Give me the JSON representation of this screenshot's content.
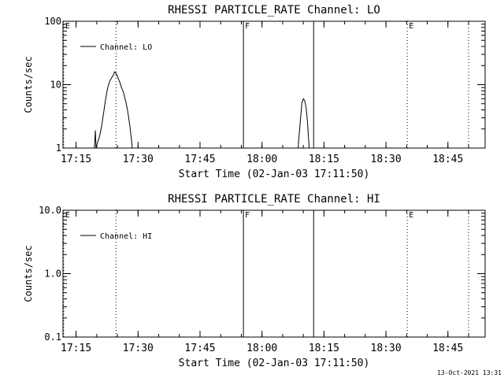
{
  "chart_data": [
    {
      "type": "line",
      "title": "RHESSI PARTICLE_RATE Channel: LO",
      "xlabel": "Start Time (02-Jan-03 17:11:50)",
      "ylabel": "Counts/sec",
      "y_scale": "log",
      "ylim": [
        1,
        100
      ],
      "y_ticks": [
        "1",
        "10",
        "100"
      ],
      "xlim": [
        "17:11:50",
        "18:54:00"
      ],
      "x_ticks": [
        "17:15",
        "17:30",
        "17:45",
        "18:00",
        "18:15",
        "18:30",
        "18:45"
      ],
      "grid": false,
      "legend": "top-left",
      "series": [
        {
          "name": "Channel: LO",
          "points": [
            [
              "17:19:00",
              0.5
            ],
            [
              "17:19:30",
              1.1
            ],
            [
              "17:19:40",
              1.9
            ],
            [
              "17:19:50",
              1.0
            ],
            [
              "17:20:10",
              1.2
            ],
            [
              "17:20:40",
              1.5
            ],
            [
              "17:21:10",
              2.2
            ],
            [
              "17:21:40",
              3.6
            ],
            [
              "17:22:10",
              6.0
            ],
            [
              "17:22:40",
              9.0
            ],
            [
              "17:23:10",
              11.5
            ],
            [
              "17:23:40",
              13.0
            ],
            [
              "17:24:00",
              14.0
            ],
            [
              "17:24:20",
              16.0
            ],
            [
              "17:24:40",
              15.0
            ],
            [
              "17:25:00",
              13.5
            ],
            [
              "17:25:20",
              12.0
            ],
            [
              "17:25:40",
              10.5
            ],
            [
              "17:26:00",
              9.0
            ],
            [
              "17:26:30",
              7.5
            ],
            [
              "17:27:00",
              5.5
            ],
            [
              "17:27:30",
              3.8
            ],
            [
              "17:28:00",
              2.3
            ],
            [
              "17:28:30",
              1.2
            ],
            [
              "17:29:00",
              0.5
            ],
            [
              "18:08:30",
              0.5
            ],
            [
              "18:08:50",
              1.2
            ],
            [
              "18:09:20",
              3.0
            ],
            [
              "18:09:40",
              5.2
            ],
            [
              "18:10:00",
              6.0
            ],
            [
              "18:10:20",
              5.6
            ],
            [
              "18:10:40",
              4.4
            ],
            [
              "18:11:00",
              2.6
            ],
            [
              "18:11:20",
              1.2
            ],
            [
              "18:11:40",
              0.5
            ]
          ]
        }
      ],
      "markers": [
        {
          "time": "17:12:00",
          "label": "E",
          "style": "dotted"
        },
        {
          "time": "17:24:40",
          "label": "",
          "style": "dotted"
        },
        {
          "time": "17:55:30",
          "label": "F",
          "style": "solid"
        },
        {
          "time": "18:12:30",
          "label": "",
          "style": "solid"
        },
        {
          "time": "18:35:10",
          "label": "E",
          "style": "dotted"
        },
        {
          "time": "18:50:00",
          "label": "",
          "style": "dotted"
        }
      ]
    },
    {
      "type": "line",
      "title": "RHESSI PARTICLE_RATE Channel: HI",
      "xlabel": "Start Time (02-Jan-03 17:11:50)",
      "ylabel": "Counts/sec",
      "y_scale": "log",
      "ylim": [
        0.1,
        10.0
      ],
      "y_ticks": [
        "0.1",
        "1.0",
        "10.0"
      ],
      "xlim": [
        "17:11:50",
        "18:54:00"
      ],
      "x_ticks": [
        "17:15",
        "17:30",
        "17:45",
        "18:00",
        "18:15",
        "18:30",
        "18:45"
      ],
      "grid": false,
      "legend": "top-left",
      "series": [
        {
          "name": "Channel: HI",
          "points": []
        }
      ],
      "markers": [
        {
          "time": "17:12:00",
          "label": "E",
          "style": "dotted"
        },
        {
          "time": "17:24:40",
          "label": "",
          "style": "dotted"
        },
        {
          "time": "17:55:30",
          "label": "F",
          "style": "solid"
        },
        {
          "time": "18:12:30",
          "label": "",
          "style": "solid"
        },
        {
          "time": "18:35:10",
          "label": "E",
          "style": "dotted"
        },
        {
          "time": "18:50:00",
          "label": "",
          "style": "dotted"
        }
      ]
    }
  ],
  "footer": {
    "timestamp": "13-Oct-2021 13:31"
  }
}
